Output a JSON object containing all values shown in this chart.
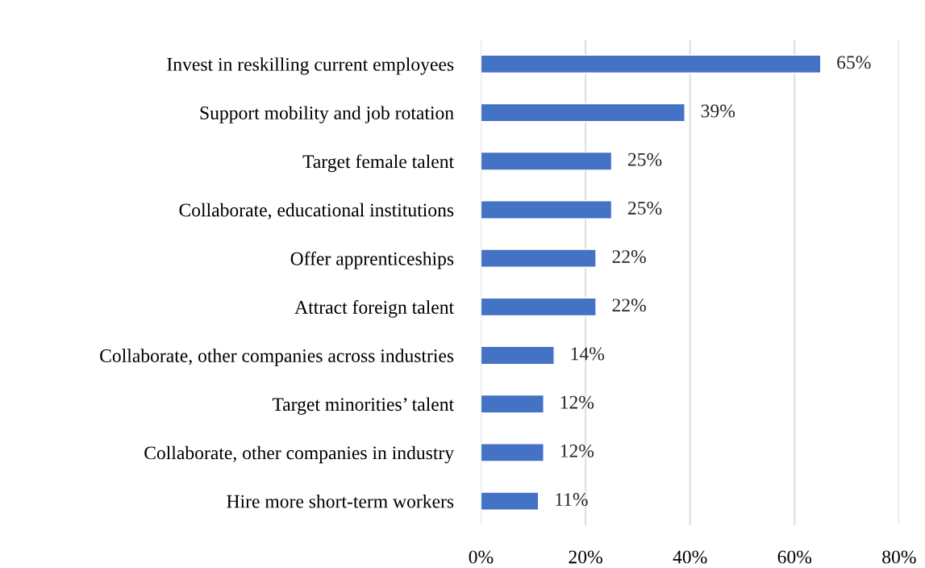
{
  "chart_data": {
    "type": "bar",
    "orientation": "horizontal",
    "categories": [
      "Invest in reskilling current employees",
      "Support mobility and job rotation",
      "Target female talent",
      "Collaborate, educational institutions",
      "Offer apprenticeships",
      "Attract foreign talent",
      "Collaborate, other companies across industries",
      "Target minorities’ talent",
      "Collaborate, other companies in industry",
      "Hire more short-term workers"
    ],
    "values": [
      65,
      39,
      25,
      25,
      22,
      22,
      14,
      12,
      12,
      11
    ],
    "value_labels": [
      "65%",
      "39%",
      "25%",
      "25%",
      "22%",
      "22%",
      "14%",
      "12%",
      "12%",
      "11%"
    ],
    "color": "#4472c4",
    "xlim": [
      0,
      80
    ],
    "xticks": [
      {
        "value": 0,
        "label": "0%"
      },
      {
        "value": 20,
        "label": "20%"
      },
      {
        "value": 40,
        "label": "40%"
      },
      {
        "value": 60,
        "label": "60%"
      },
      {
        "value": 80,
        "label": "80%"
      }
    ],
    "grid": "x",
    "legend": false
  }
}
